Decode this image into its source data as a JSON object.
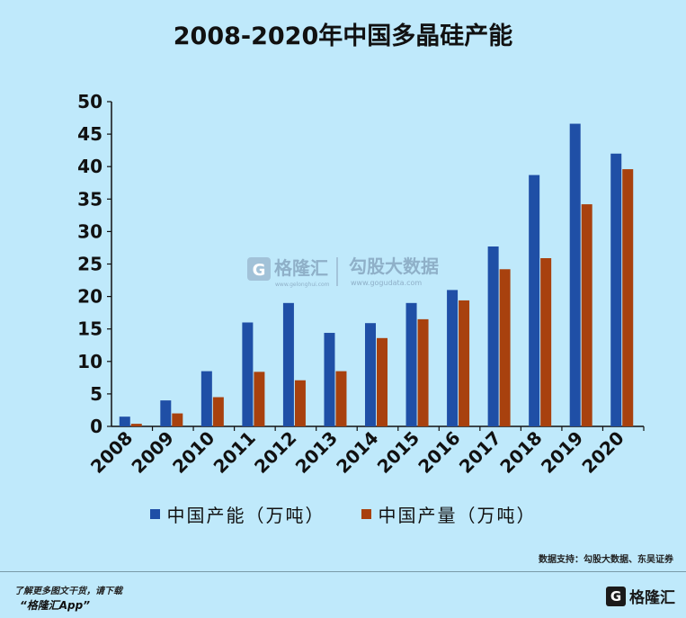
{
  "page": {
    "title": "2008-2020年中国多晶硅产能",
    "source": "数据支持：勾股大数据、东吴证券",
    "footer_line1": "了解更多图文干货，请下载",
    "footer_line2": "“格隆汇App”",
    "footer_logo_mark": "G",
    "footer_logo_name": "格隆汇"
  },
  "watermark": {
    "mark": "G",
    "brand": "格隆汇",
    "brand_url": "www.gelonghui.com",
    "partner": "勾股大数据",
    "partner_url": "www.gogudata.com"
  },
  "chart_data": {
    "type": "bar",
    "title": "2008-2020年中国多晶硅产能",
    "categories": [
      "2008",
      "2009",
      "2010",
      "2011",
      "2012",
      "2013",
      "2014",
      "2015",
      "2016",
      "2017",
      "2018",
      "2019",
      "2020"
    ],
    "series": [
      {
        "name": "中国产能（万吨）",
        "color": "#1f4fa6",
        "values": [
          1.5,
          4,
          8.5,
          16,
          19,
          14.4,
          15.9,
          19,
          21,
          27.7,
          38.7,
          46.6,
          42
        ]
      },
      {
        "name": "中国产量（万吨）",
        "color": "#a8410e",
        "values": [
          0.4,
          2,
          4.5,
          8.4,
          7.1,
          8.5,
          13.6,
          16.5,
          19.4,
          24.2,
          25.9,
          34.2,
          39.6
        ]
      }
    ],
    "ylim": [
      0,
      50
    ],
    "yticks": [
      0,
      5,
      10,
      15,
      20,
      25,
      30,
      35,
      40,
      45,
      50
    ],
    "grid": false,
    "legend_position": "bottom"
  }
}
